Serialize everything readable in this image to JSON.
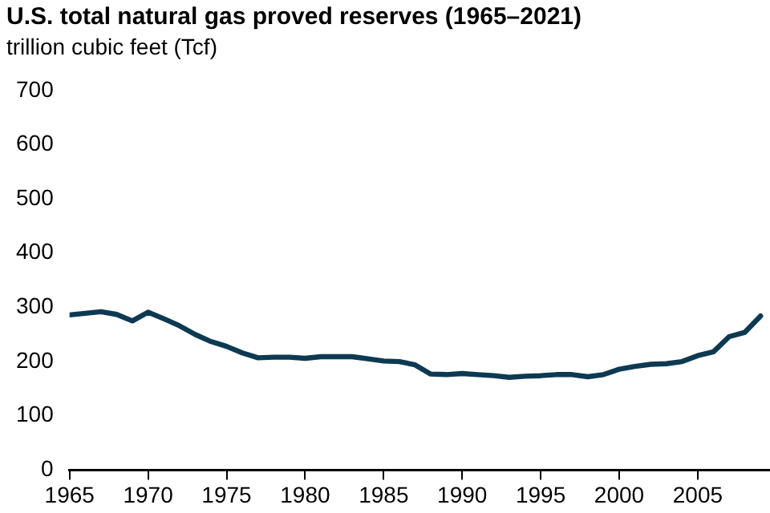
{
  "chart_data": {
    "type": "line",
    "title": "U.S. total natural gas proved reserves (1965–2021)",
    "ylabel": "trillion cubic feet (Tcf)",
    "x": [
      1965,
      1966,
      1967,
      1968,
      1969,
      1970,
      1971,
      1972,
      1973,
      1974,
      1975,
      1976,
      1977,
      1978,
      1979,
      1980,
      1981,
      1982,
      1983,
      1984,
      1985,
      1986,
      1987,
      1988,
      1989,
      1990,
      1991,
      1992,
      1993,
      1994,
      1995,
      1996,
      1997,
      1998,
      1999,
      2000,
      2001,
      2002,
      2003,
      2004,
      2005,
      2006,
      2007,
      2008,
      2009
    ],
    "series": [
      {
        "color": "#0d3a52",
        "values": [
          286,
          289,
          292,
          287,
          275,
          291,
          279,
          266,
          250,
          237,
          228,
          216,
          207,
          208,
          208,
          206,
          209,
          209,
          209,
          205,
          201,
          200,
          194,
          177,
          176,
          178,
          176,
          174,
          171,
          173,
          174,
          176,
          176,
          172,
          176,
          186,
          191,
          195,
          196,
          200,
          211,
          218,
          246,
          254,
          284
        ]
      }
    ],
    "xlim": [
      1965,
      2009.6
    ],
    "xticks": [
      1965,
      1970,
      1975,
      1980,
      1985,
      1990,
      1995,
      2000,
      2005
    ],
    "ylim": [
      0,
      700
    ],
    "yticks": [
      0,
      100,
      200,
      300,
      400,
      500,
      600,
      700
    ],
    "grid": false,
    "legend": false,
    "marker": "none",
    "line_style": "solid"
  }
}
